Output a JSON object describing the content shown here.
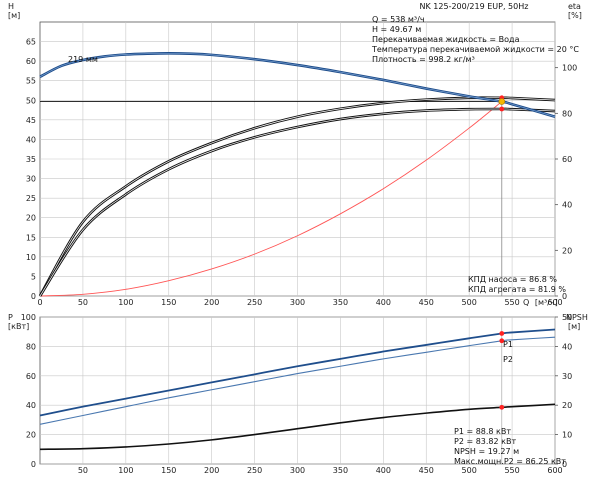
{
  "title": "NK 125-200/219 EUP, 50Hz",
  "colors": {
    "pump_curve": "#1f4e8c",
    "system_curve": "#ff5555",
    "efficiency": "#111111",
    "power_p1": "#1f4e8c",
    "power_p2": "#4a78b0",
    "npsh": "#111111",
    "marker": "#ff2222",
    "duty_point": "#f5b800",
    "grid": "#c8c8c8"
  },
  "top_panel": {
    "y_left_label": "H",
    "y_left_unit": "[м]",
    "y_right_label": "eta",
    "y_right_unit": "[%]",
    "curve_label": "219 мм",
    "info_lines": [
      "Q = 538 м³/ч",
      "H = 49.67 м",
      "Перекачиваемая жидкость = Вода",
      "Температура перекачиваемой жидкости = 20 °C",
      "Плотность = 998.2 кг/м³"
    ],
    "eff_lines": [
      "КПД насоса = 86.8 %",
      "КПД агрегата = 81.9 %"
    ]
  },
  "bottom_panel": {
    "y_left_label": "P",
    "y_left_unit": "[кВт]",
    "y_right_label": "NPSH",
    "y_right_unit": "[м]",
    "p1_label": "P1",
    "p2_label": "P2",
    "info_lines": [
      "P1 = 88.8 кВт",
      "P2 = 83.82 кВт",
      "NPSH = 19.27 м",
      "Макс.мощн.P2 = 86.25 кВт"
    ]
  },
  "x_axis": {
    "label": "Q",
    "unit": "[м³/ч]"
  },
  "chart_data": [
    {
      "type": "line",
      "title": "NK 125-200/219 EUP, 50Hz",
      "xlabel": "Q [м³/ч]",
      "ylabel": "H [м]",
      "y2label": "eta [%]",
      "xlim": [
        0,
        600
      ],
      "ylim": [
        0,
        70
      ],
      "y2lim": [
        0,
        120
      ],
      "xticks": [
        50,
        100,
        150,
        200,
        250,
        300,
        350,
        400,
        450,
        500,
        550,
        600
      ],
      "xtick_labels": [
        "50",
        "100",
        "150",
        "200",
        "250",
        "300",
        "350",
        "400",
        "450",
        "500",
        "550",
        "600"
      ],
      "yticks": [
        0,
        5,
        10,
        15,
        20,
        25,
        30,
        35,
        40,
        45,
        50,
        55,
        60,
        65
      ],
      "ytick_labels": [
        "0",
        "5",
        "10",
        "15",
        "20",
        "25",
        "30",
        "35",
        "40",
        "45",
        "50",
        "55",
        "60",
        "65"
      ],
      "y2ticks": [
        0,
        20,
        40,
        60,
        80,
        100
      ],
      "y2tick_labels": [
        "0",
        "20",
        "40",
        "60",
        "80",
        "100"
      ],
      "grid": true,
      "series": [
        {
          "name": "219 мм",
          "axis": "left",
          "x": [
            0,
            25,
            50,
            75,
            100,
            125,
            150,
            175,
            200,
            250,
            300,
            350,
            400,
            450,
            500,
            538,
            550,
            600
          ],
          "y": [
            56,
            58.8,
            60.3,
            61.2,
            61.7,
            61.9,
            62.0,
            61.9,
            61.6,
            60.5,
            59.0,
            57.2,
            55.2,
            53.0,
            51.0,
            49.67,
            49.0,
            45.8
          ]
        },
        {
          "name": "",
          "role": "system-curve",
          "axis": "left",
          "x": [
            0,
            50,
            100,
            150,
            200,
            250,
            300,
            350,
            400,
            450,
            500,
            538
          ],
          "y": [
            0,
            0.43,
            1.7,
            3.9,
            6.9,
            10.7,
            15.4,
            21.0,
            27.4,
            34.7,
            42.9,
            49.67
          ]
        },
        {
          "name": "",
          "role": "pump-efficiency",
          "axis": "right",
          "x": [
            0,
            50,
            100,
            150,
            200,
            250,
            300,
            350,
            400,
            450,
            500,
            538,
            550,
            600
          ],
          "y": [
            0,
            32.5,
            48,
            59,
            67,
            73.5,
            78.5,
            82,
            84.5,
            86,
            86.8,
            86.8,
            86.7,
            85.8
          ]
        },
        {
          "name": "",
          "role": "unit-efficiency",
          "axis": "right",
          "x": [
            0,
            50,
            100,
            150,
            200,
            250,
            300,
            350,
            400,
            450,
            500,
            538,
            550,
            600
          ],
          "y": [
            0,
            29,
            44.5,
            55.5,
            63.5,
            69.5,
            74,
            77.5,
            79.8,
            81.2,
            81.8,
            81.9,
            81.8,
            81
          ]
        }
      ],
      "duty_point": {
        "x": 538,
        "y": 49.67
      }
    },
    {
      "type": "line",
      "xlabel": "Q [м³/ч]",
      "ylabel": "P [кВт]",
      "y2label": "NPSH [м]",
      "xlim": [
        0,
        600
      ],
      "ylim": [
        0,
        100
      ],
      "y2lim": [
        0,
        50
      ],
      "xticks": [
        50,
        100,
        150,
        200,
        250,
        300,
        350,
        400,
        450,
        500,
        550,
        600
      ],
      "xtick_labels": [
        "50",
        "100",
        "150",
        "200",
        "250",
        "300",
        "350",
        "400",
        "450",
        "500",
        "550",
        "600"
      ],
      "yticks": [
        0,
        20,
        40,
        60,
        80,
        100
      ],
      "ytick_labels": [
        "0",
        "20",
        "40",
        "60",
        "80",
        "100"
      ],
      "y2ticks": [
        0,
        10,
        20,
        30,
        40,
        50
      ],
      "y2tick_labels": [
        "0",
        "10",
        "20",
        "30",
        "40",
        "50"
      ],
      "grid": true,
      "series": [
        {
          "name": "P1",
          "axis": "left",
          "x": [
            0,
            50,
            100,
            150,
            200,
            250,
            300,
            350,
            400,
            450,
            500,
            538,
            550,
            600
          ],
          "y": [
            33,
            39,
            44.5,
            50,
            55.5,
            61,
            66.5,
            71.5,
            76.5,
            81,
            85.5,
            88.8,
            89.5,
            91.5
          ]
        },
        {
          "name": "P2",
          "axis": "left",
          "x": [
            0,
            50,
            100,
            150,
            200,
            250,
            300,
            350,
            400,
            450,
            500,
            538,
            550,
            600
          ],
          "y": [
            27,
            33,
            39,
            45,
            50.5,
            56,
            61.5,
            66.5,
            71.5,
            76,
            80.5,
            83.82,
            84.5,
            86.25
          ]
        },
        {
          "name": "",
          "role": "npsh",
          "axis": "right",
          "x": [
            0,
            50,
            100,
            150,
            200,
            250,
            300,
            350,
            400,
            450,
            500,
            538,
            550,
            600
          ],
          "y": [
            5,
            5.2,
            5.8,
            6.8,
            8.2,
            10,
            12,
            14,
            15.8,
            17.3,
            18.6,
            19.27,
            19.5,
            20.3
          ]
        }
      ],
      "duty_q": 538
    }
  ]
}
